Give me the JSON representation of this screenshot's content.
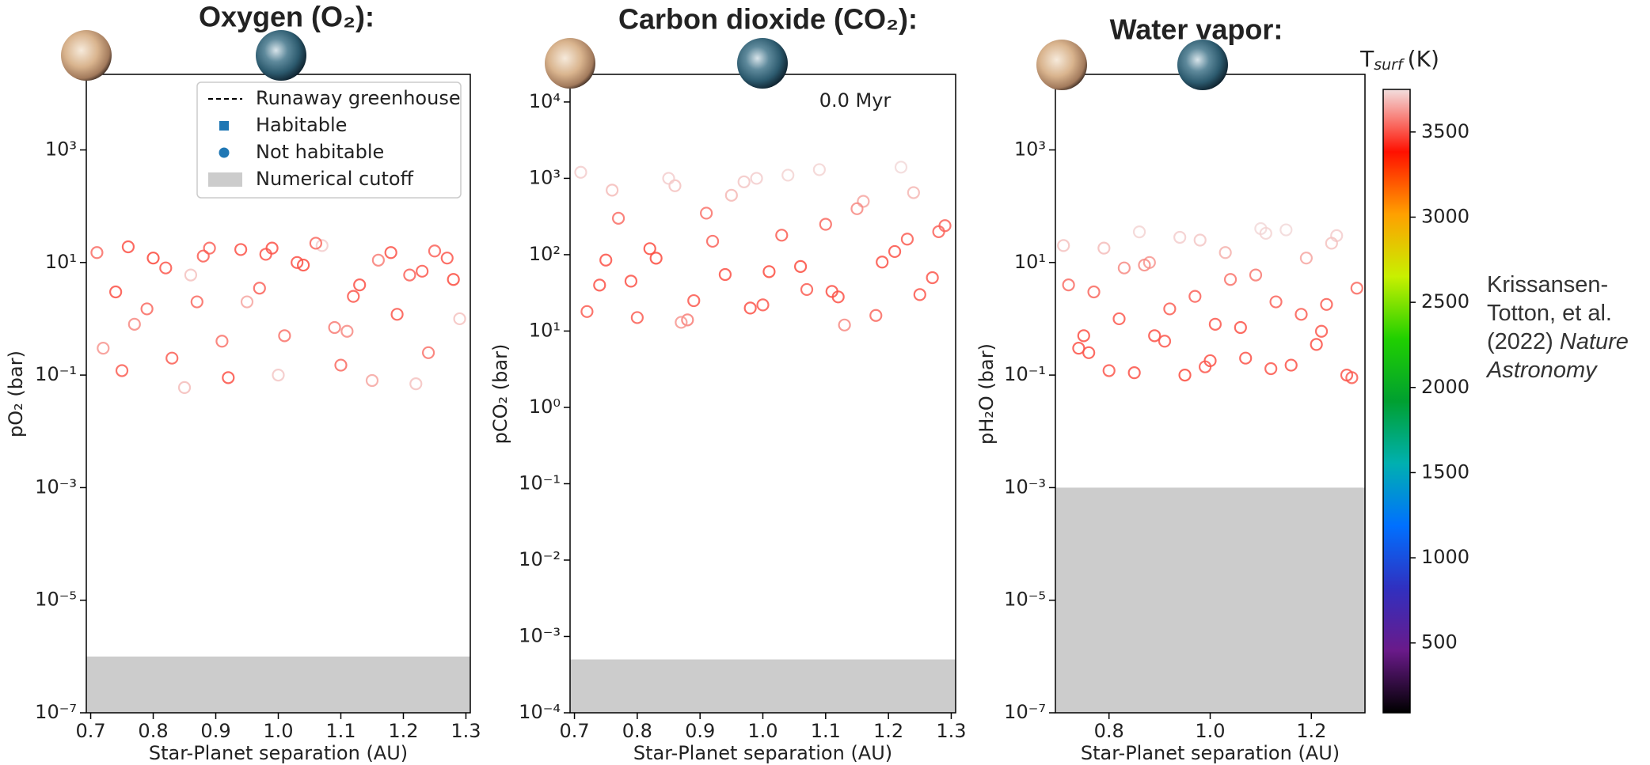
{
  "chart_data": [
    {
      "type": "scatter",
      "title": "Oxygen (O₂):",
      "xlabel": "Star-Planet separation (AU)",
      "ylabel": "pO₂ (bar)",
      "xlim": [
        0.693,
        1.307
      ],
      "ylim": [
        1e-07,
        22000
      ],
      "yscale": "log",
      "xticks": [
        0.7,
        0.8,
        0.9,
        {
          "value": 1,
          "label": "1.0"
        },
        1.1,
        1.2,
        1.3
      ],
      "yticks": [
        {
          "value": 1e-07,
          "label": "10⁻⁷"
        },
        {
          "value": 1e-05,
          "label": "10⁻⁵"
        },
        {
          "value": 0.001,
          "label": "10⁻³"
        },
        {
          "value": 0.1,
          "label": "10⁻¹"
        },
        {
          "value": 10,
          "label": "10¹"
        },
        {
          "value": 1000,
          "label": "10³"
        }
      ],
      "cutoff": 1e-06,
      "cutoff_color": "#cccccc",
      "legend": {
        "position": "upper right",
        "entries": [
          {
            "label": "Runaway greenhouse",
            "marker": "dashed-line",
            "color": "#000000"
          },
          {
            "label": "Habitable",
            "marker": "square",
            "color": "#1f77b4"
          },
          {
            "label": "Not habitable",
            "marker": "circle",
            "color": "#1f77b4"
          },
          {
            "label": "Numerical cutoff",
            "marker": "patch",
            "color": "#cccccc"
          }
        ]
      },
      "x": [
        0.71,
        0.74,
        0.77,
        0.8,
        0.83,
        0.86,
        0.89,
        0.92,
        0.95,
        0.98,
        1.01,
        1.04,
        1.07,
        1.1,
        1.13,
        1.16,
        1.19,
        1.22,
        1.25,
        1.28,
        0.72,
        0.76,
        0.79,
        0.82,
        0.85,
        0.88,
        0.91,
        0.94,
        0.97,
        1.0,
        1.03,
        1.06,
        1.09,
        1.12,
        1.15,
        1.18,
        1.21,
        1.24,
        1.27,
        1.29,
        0.75,
        0.87,
        0.99,
        1.11,
        1.23
      ],
      "y": [
        15,
        3,
        0.8,
        12,
        0.2,
        6,
        18,
        0.09,
        2,
        14,
        0.5,
        9,
        20,
        0.15,
        4,
        11,
        1.2,
        0.07,
        16,
        5,
        0.3,
        19,
        1.5,
        8,
        0.06,
        13,
        0.4,
        17,
        3.5,
        0.1,
        10,
        22,
        0.7,
        2.5,
        0.08,
        15,
        6,
        0.25,
        12,
        1,
        0.12,
        2,
        18,
        0.6,
        7
      ],
      "c": [
        3550,
        3500,
        3600,
        3480,
        3520,
        3700,
        3530,
        3500,
        3650,
        3510,
        3560,
        3490,
        3720,
        3540,
        3500,
        3580,
        3510,
        3700,
        3530,
        3490,
        3620,
        3500,
        3540,
        3510,
        3690,
        3520,
        3560,
        3500,
        3530,
        3710,
        3500,
        3540,
        3580,
        3510,
        3650,
        3500,
        3530,
        3560,
        3510,
        3700,
        3520,
        3540,
        3500,
        3600,
        3510
      ]
    },
    {
      "type": "scatter",
      "title": "Carbon dioxide (CO₂):",
      "xlabel": "Star-Planet separation (AU)",
      "ylabel": "pCO₂ (bar)",
      "xlim": [
        0.693,
        1.307
      ],
      "ylim": [
        0.0001,
        23000
      ],
      "yscale": "log",
      "xticks": [
        0.7,
        0.8,
        0.9,
        {
          "value": 1,
          "label": "1.0"
        },
        1.1,
        1.2,
        1.3
      ],
      "yticks": [
        {
          "value": 0.0001,
          "label": "10⁻⁴"
        },
        {
          "value": 0.001,
          "label": "10⁻³"
        },
        {
          "value": 0.01,
          "label": "10⁻²"
        },
        {
          "value": 0.1,
          "label": "10⁻¹"
        },
        {
          "value": 1,
          "label": "10⁰"
        },
        {
          "value": 10,
          "label": "10¹"
        },
        {
          "value": 100,
          "label": "10²"
        },
        {
          "value": 1000,
          "label": "10³"
        },
        {
          "value": 10000,
          "label": "10⁴"
        }
      ],
      "cutoff": 0.0005,
      "cutoff_color": "#cccccc",
      "annotation": "0.0 Myr",
      "x": [
        0.71,
        0.74,
        0.77,
        0.8,
        0.83,
        0.86,
        0.89,
        0.92,
        0.95,
        0.98,
        1.01,
        1.04,
        1.07,
        1.1,
        1.13,
        1.16,
        1.19,
        1.22,
        1.25,
        1.28,
        0.72,
        0.76,
        0.79,
        0.82,
        0.85,
        0.88,
        0.91,
        0.94,
        0.97,
        1.0,
        1.03,
        1.06,
        1.09,
        1.12,
        1.15,
        1.18,
        1.21,
        1.24,
        1.27,
        1.29,
        0.75,
        0.87,
        0.99,
        1.11,
        1.23
      ],
      "y": [
        1200,
        40,
        300,
        15,
        90,
        800,
        25,
        150,
        600,
        20,
        60,
        1100,
        35,
        250,
        12,
        500,
        80,
        1400,
        30,
        200,
        18,
        700,
        45,
        120,
        1000,
        14,
        350,
        55,
        900,
        22,
        180,
        70,
        1300,
        28,
        400,
        16,
        110,
        650,
        50,
        240,
        85,
        13,
        1000,
        33,
        160
      ],
      "c": [
        3720,
        3500,
        3550,
        3520,
        3490,
        3700,
        3510,
        3530,
        3680,
        3500,
        3490,
        3730,
        3520,
        3540,
        3600,
        3650,
        3500,
        3740,
        3510,
        3530,
        3520,
        3690,
        3500,
        3490,
        3720,
        3580,
        3560,
        3500,
        3710,
        3510,
        3520,
        3490,
        3730,
        3500,
        3600,
        3540,
        3500,
        3680,
        3510,
        3530,
        3500,
        3620,
        3720,
        3500,
        3520
      ]
    },
    {
      "type": "scatter",
      "title": "Water vapor:",
      "xlabel": "Star-Planet separation (AU)",
      "ylabel": "pH₂O (bar)",
      "xlim": [
        0.694,
        1.306
      ],
      "ylim": [
        1e-07,
        22000
      ],
      "yscale": "log",
      "xticks": [
        0.8,
        {
          "value": 1,
          "label": "1.0"
        },
        1.2
      ],
      "yticks": [
        {
          "value": 1e-07,
          "label": "10⁻⁷"
        },
        {
          "value": 1e-05,
          "label": "10⁻⁵"
        },
        {
          "value": 0.001,
          "label": "10⁻³"
        },
        {
          "value": 0.1,
          "label": "10⁻¹"
        },
        {
          "value": 10,
          "label": "10¹"
        },
        {
          "value": 1000,
          "label": "10³"
        }
      ],
      "cutoff": 0.001,
      "cutoff_color": "#cccccc",
      "x": [
        0.71,
        0.74,
        0.77,
        0.8,
        0.83,
        0.86,
        0.89,
        0.92,
        0.95,
        0.98,
        1.01,
        1.04,
        1.07,
        1.1,
        1.13,
        1.16,
        1.19,
        1.22,
        1.25,
        1.28,
        0.72,
        0.76,
        0.79,
        0.82,
        0.85,
        0.88,
        0.91,
        0.94,
        0.97,
        1.0,
        1.03,
        1.06,
        1.09,
        1.12,
        1.15,
        1.18,
        1.21,
        1.24,
        1.27,
        1.29,
        0.75,
        0.87,
        0.99,
        1.11,
        1.23
      ],
      "y": [
        20,
        0.3,
        3,
        0.12,
        8,
        35,
        0.5,
        1.5,
        0.1,
        25,
        0.8,
        5,
        0.2,
        40,
        2,
        0.15,
        12,
        0.6,
        30,
        0.09,
        4,
        0.25,
        18,
        1,
        0.11,
        10,
        0.4,
        28,
        2.5,
        0.18,
        15,
        0.7,
        6,
        0.13,
        38,
        1.2,
        0.35,
        22,
        0.1,
        3.5,
        0.5,
        9,
        0.14,
        33,
        1.8
      ],
      "c": [
        3700,
        3500,
        3540,
        3510,
        3600,
        3730,
        3500,
        3520,
        3490,
        3710,
        3510,
        3560,
        3500,
        3740,
        3530,
        3500,
        3650,
        3510,
        3720,
        3520,
        3550,
        3500,
        3690,
        3510,
        3500,
        3620,
        3510,
        3720,
        3530,
        3500,
        3670,
        3500,
        3570,
        3510,
        3740,
        3520,
        3500,
        3700,
        3510,
        3540,
        3500,
        3600,
        3510,
        3730,
        3520
      ],
      "colorbar": {
        "label_main": "T",
        "label_sub": "surf",
        "label_unit": "(K)",
        "clim": [
          90,
          3750
        ],
        "ticks": [
          500,
          1000,
          1500,
          2000,
          2500,
          3000,
          3500
        ],
        "colormap": [
          "#000000",
          "#6a1a8a",
          "#3030c0",
          "#0070ff",
          "#00b0b0",
          "#00a030",
          "#20d000",
          "#c8f000",
          "#ffa000",
          "#ff1000",
          "#f2dede"
        ]
      }
    }
  ],
  "caption": {
    "authors": "Krissansen-Totton, et al. (2022)",
    "journal": "Nature Astronomy"
  }
}
